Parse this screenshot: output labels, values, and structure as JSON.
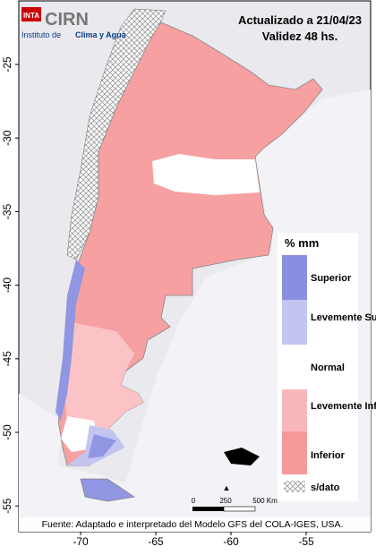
{
  "header": {
    "logo": "INTA",
    "org": "CIRN",
    "org_sub_1": "Instituto de",
    "org_sub_2": "Clima y Agua",
    "updated": "Actualizado a 21/04/23",
    "validity": "Validez 48 hs."
  },
  "legend": {
    "title": "% mm",
    "items": [
      "Superior",
      "Levemente Superior",
      "Normal",
      "Levemente Inferior",
      "Inferior"
    ],
    "no_data": "s/dato"
  },
  "scale_bar": {
    "labels": [
      "0",
      "250",
      "500 Km"
    ]
  },
  "axes": {
    "lat_labels": [
      "-25",
      "-30",
      "-35",
      "-40",
      "-45",
      "-50",
      "-55"
    ],
    "lon_labels": [
      "-70",
      "-65",
      "-60",
      "-55"
    ]
  },
  "source": "Fuente: Adaptado e interpretado del Modelo GFS del COLA-IGES, USA."
}
